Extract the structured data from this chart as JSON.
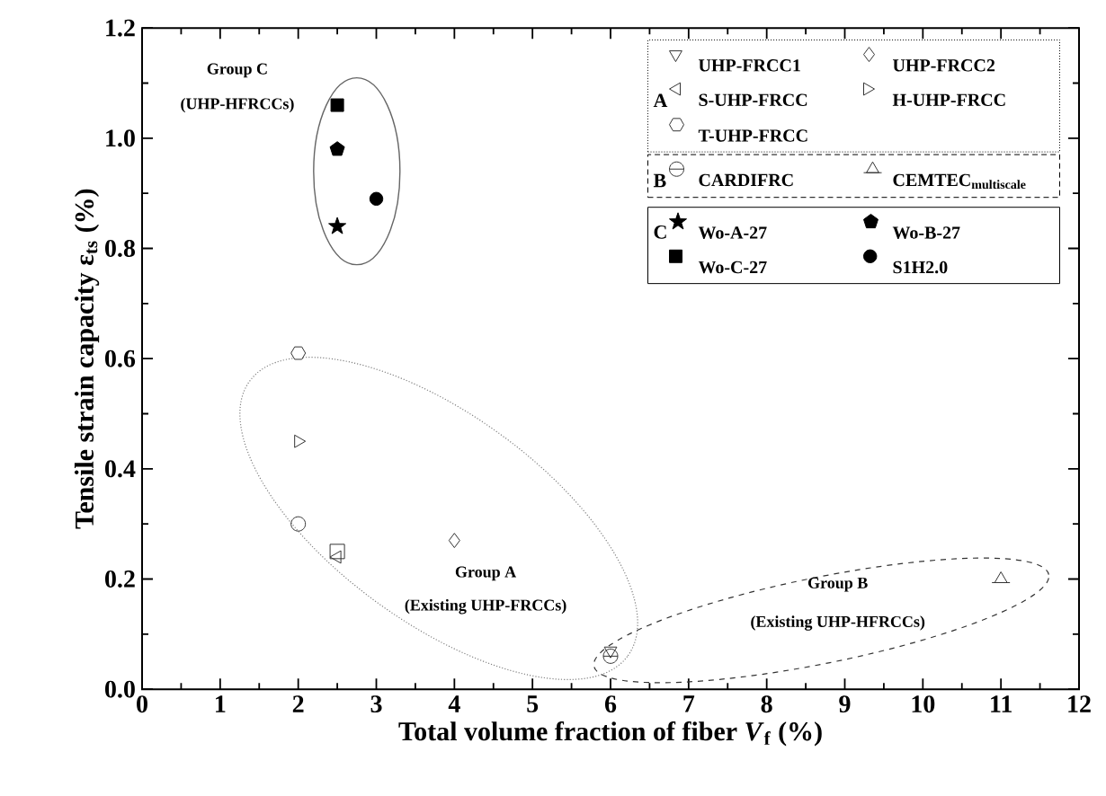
{
  "chart_data": {
    "type": "scatter",
    "xlabel": "Total volume fraction of fiber *V*$_{f}$ (%)",
    "ylabel": "Tensile strain capacity ε$_{ts}$ (%)",
    "xlim": [
      0,
      12
    ],
    "ylim": [
      0,
      1.2
    ],
    "xticks": [
      0,
      1,
      2,
      3,
      4,
      5,
      6,
      7,
      8,
      9,
      10,
      11,
      12
    ],
    "yticks": [
      {
        "value": 0,
        "label": "0.0"
      },
      {
        "value": 0.2,
        "label": "0.2"
      },
      {
        "value": 0.4,
        "label": "0.4"
      },
      {
        "value": 0.6,
        "label": "0.6"
      },
      {
        "value": 0.8,
        "label": "0.8"
      },
      {
        "value": 1.0,
        "label": "1.0"
      },
      {
        "value": 1.2,
        "label": "1.2"
      }
    ],
    "legend": "top right",
    "annotations": [
      "Group C",
      "(UHP-HFRCCs)",
      "Group A",
      "(Existing UHP-FRCCs)",
      "Group B",
      "(Existing UHP-HFRCCs)",
      "A",
      "B",
      "C"
    ],
    "series": [
      {
        "color": "#333333",
        "marker": "square",
        "x": [
          2.5
        ],
        "values": [
          0.25
        ]
      },
      {
        "color": "#333333",
        "marker": "circle",
        "x": [
          2
        ],
        "values": [
          0.3
        ]
      },
      {
        "name": "UHP-FRCC1",
        "color": "#333333",
        "marker": "triangle-down",
        "x": [
          6
        ],
        "values": [
          0.07
        ]
      },
      {
        "name": "UHP-FRCC2",
        "color": "#333333",
        "marker": "diamond",
        "x": [
          4
        ],
        "values": [
          0.27
        ]
      },
      {
        "name": "S-UHP-FRCC",
        "color": "#333333",
        "marker": "triangle-left",
        "x": [
          2.5
        ],
        "values": [
          0.24
        ]
      },
      {
        "name": "H-UHP-FRCC",
        "color": "#333333",
        "marker": "triangle-right",
        "x": [
          2
        ],
        "values": [
          0.45
        ]
      },
      {
        "name": "T-UHP-FRCC",
        "color": "#333333",
        "x": [
          2
        ],
        "values": [
          0.61
        ]
      },
      {
        "name": "CARDIFRC",
        "color": "#333333",
        "marker": "circle-bar",
        "x": [
          6
        ],
        "values": [
          0.06
        ]
      },
      {
        "name": "\\mathbf{CEMTEC}_{\\mathbf{multiscale}}",
        "color": "#333333",
        "x": [
          11
        ],
        "values": [
          0.2
        ]
      },
      {
        "name": "Wo-A-27",
        "color": "#000000",
        "marker": "star",
        "x": [
          2.5
        ],
        "values": [
          0.84
        ]
      },
      {
        "name": "Wo-B-27",
        "color": "#000000",
        "x": [
          2.5
        ],
        "values": [
          0.98
        ]
      },
      {
        "name": "Wo-C-27",
        "color": "#000000",
        "marker": "square-filled",
        "x": [
          2.5
        ],
        "values": [
          1.06
        ]
      },
      {
        "name": "S1H2.0",
        "color": "#000000",
        "marker": "circle-filled",
        "x": [
          3
        ],
        "values": [
          0.89
        ]
      }
    ]
  }
}
